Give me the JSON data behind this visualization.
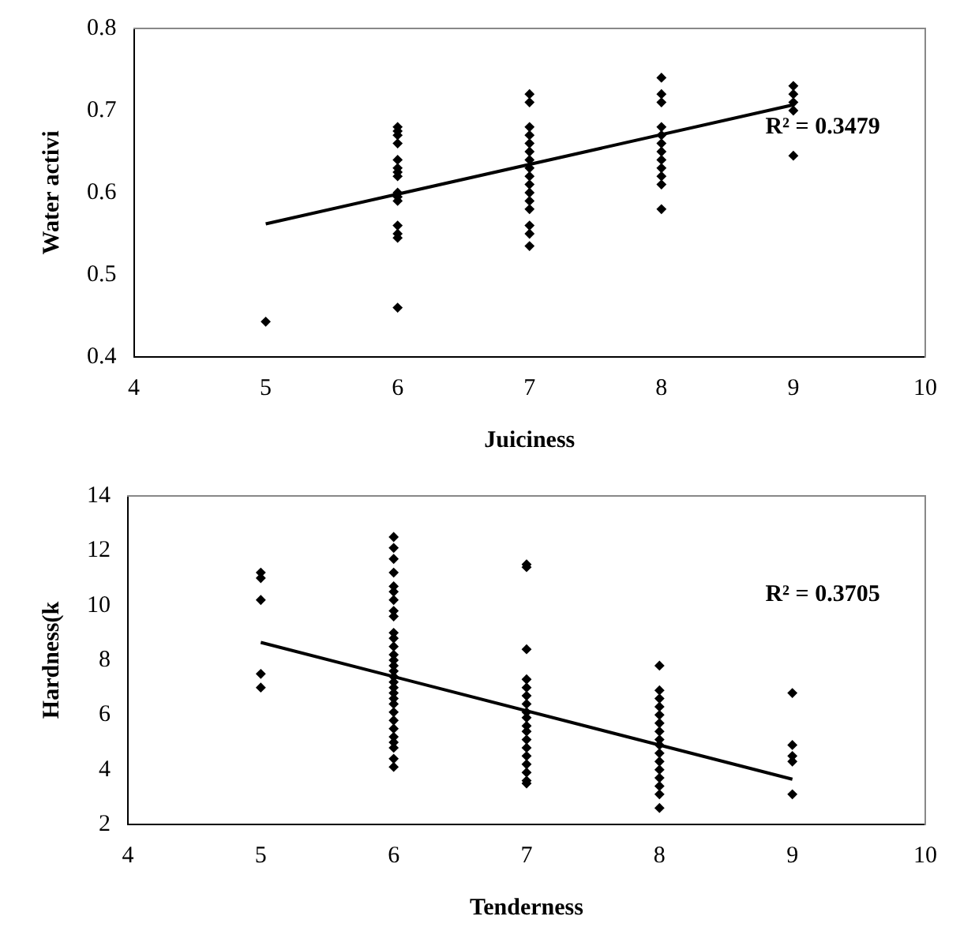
{
  "chart_data": [
    {
      "type": "scatter",
      "xlabel": "Juiciness",
      "ylabel": "Water activi",
      "xlim": [
        4,
        10
      ],
      "xticks": [
        4,
        5,
        6,
        7,
        8,
        9,
        10
      ],
      "ylim": [
        0.4,
        0.8
      ],
      "yticks": [
        0.4,
        0.5,
        0.6,
        0.7,
        0.8
      ],
      "grid": false,
      "legend": false,
      "marker": "diamond",
      "annotations": [
        "R² = 0.3479"
      ],
      "series": [
        {
          "color": "#000000",
          "x": [
            5,
            6,
            6,
            6,
            6,
            6,
            6,
            6,
            6,
            6,
            6,
            6,
            6,
            6,
            6,
            6,
            7,
            7,
            7,
            7,
            7,
            7,
            7,
            7,
            7,
            7,
            7,
            7,
            7,
            7,
            7,
            7,
            8,
            8,
            8,
            8,
            8,
            8,
            8,
            8,
            8,
            8,
            8,
            8,
            9,
            9,
            9,
            9,
            9
          ],
          "values": [
            0.443,
            0.68,
            0.675,
            0.67,
            0.66,
            0.64,
            0.63,
            0.625,
            0.62,
            0.6,
            0.595,
            0.59,
            0.56,
            0.55,
            0.545,
            0.46,
            0.72,
            0.71,
            0.68,
            0.67,
            0.66,
            0.65,
            0.64,
            0.63,
            0.62,
            0.61,
            0.6,
            0.59,
            0.58,
            0.56,
            0.55,
            0.535,
            0.74,
            0.72,
            0.71,
            0.68,
            0.67,
            0.66,
            0.65,
            0.64,
            0.63,
            0.62,
            0.61,
            0.58,
            0.73,
            0.72,
            0.71,
            0.7,
            0.645
          ]
        },
        {
          "type": "line",
          "color": "#000000",
          "marker": "none",
          "x": [
            5,
            9
          ],
          "values": [
            0.562,
            0.707
          ]
        }
      ]
    },
    {
      "type": "scatter",
      "xlabel": "Tenderness",
      "ylabel": "Hardness(k",
      "xlim": [
        4,
        10
      ],
      "xticks": [
        4,
        5,
        6,
        7,
        8,
        9,
        10
      ],
      "ylim": [
        2,
        14
      ],
      "yticks": [
        2,
        4,
        6,
        8,
        10,
        12,
        14
      ],
      "grid": false,
      "legend": false,
      "marker": "diamond",
      "annotations": [
        "R² = 0.3705"
      ],
      "series": [
        {
          "color": "#000000",
          "x": [
            5,
            5,
            5,
            5,
            5,
            6,
            6,
            6,
            6,
            6,
            6,
            6,
            6,
            6,
            6,
            6,
            6,
            6,
            6,
            6,
            6,
            6,
            6,
            6,
            6,
            6,
            6,
            6,
            6,
            6,
            6,
            6,
            6,
            6,
            6,
            7,
            7,
            7,
            7,
            7,
            7,
            7,
            7,
            7,
            7,
            7,
            7,
            7,
            7,
            7,
            7,
            7,
            7,
            8,
            8,
            8,
            8,
            8,
            8,
            8,
            8,
            8,
            8,
            8,
            8,
            8,
            8,
            8,
            8,
            9,
            9,
            9,
            9,
            9
          ],
          "values": [
            11.2,
            11.0,
            10.2,
            7.5,
            7.0,
            12.5,
            12.1,
            11.7,
            11.2,
            10.7,
            10.5,
            10.2,
            9.8,
            9.6,
            9.0,
            8.8,
            8.5,
            8.2,
            8.0,
            7.8,
            7.6,
            7.4,
            7.2,
            7.0,
            6.8,
            6.6,
            6.4,
            6.1,
            5.8,
            5.5,
            5.2,
            5.0,
            4.8,
            4.4,
            4.1,
            11.5,
            11.4,
            8.4,
            7.3,
            7.0,
            6.7,
            6.4,
            6.1,
            5.9,
            5.6,
            5.4,
            5.1,
            4.8,
            4.5,
            4.2,
            3.9,
            3.6,
            3.5,
            7.8,
            6.9,
            6.6,
            6.3,
            6.0,
            5.7,
            5.4,
            5.1,
            4.9,
            4.6,
            4.3,
            4.0,
            3.7,
            3.4,
            3.1,
            2.6,
            6.8,
            4.9,
            4.5,
            4.3,
            3.1
          ]
        },
        {
          "type": "line",
          "color": "#000000",
          "marker": "none",
          "x": [
            5,
            9
          ],
          "values": [
            8.65,
            3.65
          ]
        }
      ]
    }
  ]
}
